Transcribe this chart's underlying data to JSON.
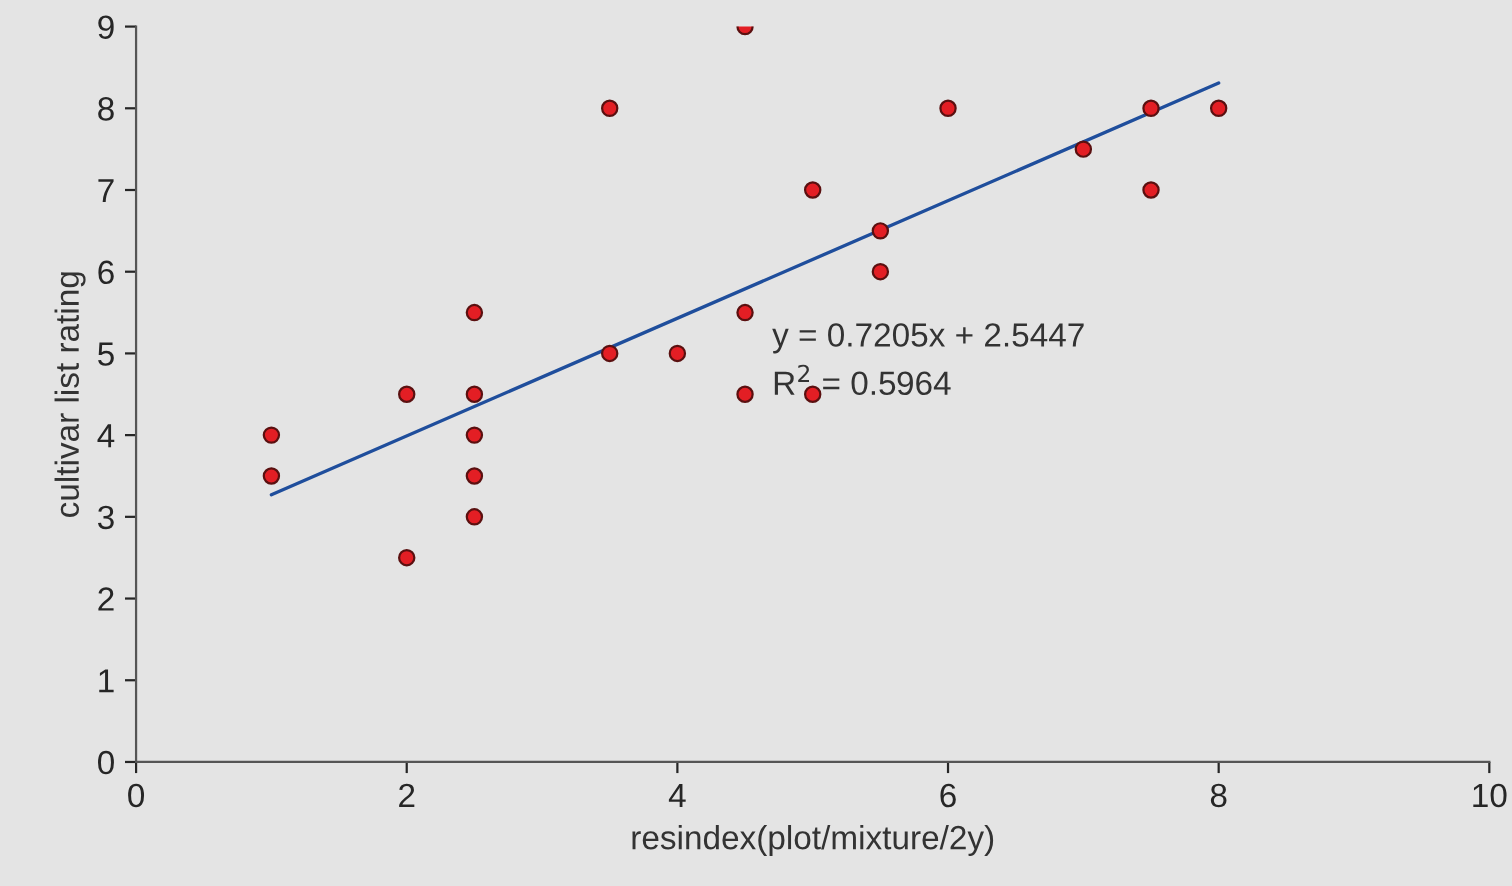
{
  "chart_data": {
    "type": "scatter",
    "xlabel": "resindex(plot/mixture/2y)",
    "ylabel": "cultivar list rating",
    "xlim": [
      0,
      10
    ],
    "xticks": [
      0,
      2,
      4,
      6,
      8,
      10
    ],
    "ylim": [
      0,
      9
    ],
    "yticks": [
      0,
      1,
      2,
      3,
      4,
      5,
      6,
      7,
      8,
      9
    ],
    "grid": false,
    "legend": false,
    "series": [
      {
        "marker": "circle",
        "color": "#e31e24",
        "x": [
          1,
          1,
          2,
          2,
          2.5,
          2.5,
          2.5,
          2.5,
          2.5,
          3.5,
          3.5,
          4,
          4.5,
          4.5,
          4.5,
          5,
          5,
          5.5,
          5.5,
          6,
          7,
          7.5,
          7.5,
          8
        ],
        "values": [
          4,
          3.5,
          4.5,
          2.5,
          5.5,
          4.5,
          4,
          3.5,
          3,
          8,
          5,
          5,
          9,
          5.5,
          4.5,
          7,
          4.5,
          6.5,
          6,
          8,
          7.5,
          8,
          7,
          8
        ]
      },
      {
        "type": "line",
        "color": "#1f4e9c",
        "x": [
          1,
          8
        ],
        "values": [
          3.27,
          8.31
        ]
      }
    ],
    "annotations": [
      "y = 0.7205x + 2.5447",
      "R$^{2}$ = 0.5964"
    ]
  }
}
